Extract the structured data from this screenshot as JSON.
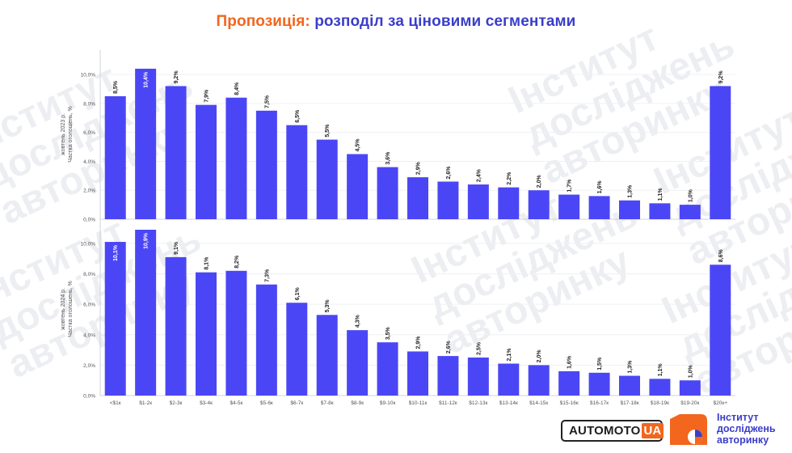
{
  "title": {
    "accent": "Пропозиція:",
    "main": "розподіл за ціновими сегментами"
  },
  "chart_data": [
    {
      "type": "bar",
      "ylabel_line1": "жовтень 2023 р.",
      "ylabel_line2": "Частка оголошень, %",
      "ylim": [
        0,
        10.9
      ],
      "yticks": [
        "0,0%",
        "2,0%",
        "4,0%",
        "6,0%",
        "8,0%",
        "10,0%"
      ],
      "values": [
        8.5,
        10.4,
        9.2,
        7.9,
        8.4,
        7.5,
        6.5,
        5.5,
        4.5,
        3.6,
        2.9,
        2.6,
        2.4,
        2.2,
        2.0,
        1.7,
        1.6,
        1.3,
        1.1,
        1.0,
        9.2
      ],
      "labels": [
        "8,5%",
        "10,4%",
        "9,2%",
        "7,9%",
        "8,4%",
        "7,5%",
        "6,5%",
        "5,5%",
        "4,5%",
        "3,6%",
        "2,9%",
        "2,6%",
        "2,4%",
        "2,2%",
        "2,0%",
        "1,7%",
        "1,6%",
        "1,3%",
        "1,1%",
        "1,0%",
        "9,2%"
      ]
    },
    {
      "type": "bar",
      "ylabel_line1": "жовтень 2024 р.",
      "ylabel_line2": "Частка оголошень, %",
      "ylim": [
        0,
        10.9
      ],
      "yticks": [
        "0,0%",
        "2,0%",
        "4,0%",
        "6,0%",
        "8,0%",
        "10,0%"
      ],
      "values": [
        10.1,
        10.9,
        9.1,
        8.1,
        8.2,
        7.3,
        6.1,
        5.3,
        4.3,
        3.5,
        2.9,
        2.6,
        2.5,
        2.1,
        2.0,
        1.6,
        1.5,
        1.3,
        1.1,
        1.0,
        8.6
      ],
      "labels": [
        "10,1%",
        "10,9%",
        "9,1%",
        "8,1%",
        "8,2%",
        "7,3%",
        "6,1%",
        "5,3%",
        "4,3%",
        "3,5%",
        "2,9%",
        "2,6%",
        "2,5%",
        "2,1%",
        "2,0%",
        "1,6%",
        "1,5%",
        "1,3%",
        "1,1%",
        "1,0%",
        "8,6%"
      ],
      "categories": [
        "<$1к",
        "$1-2к",
        "$2-3к",
        "$3-4к",
        "$4-5к",
        "$5-6к",
        "$6-7к",
        "$7-8к",
        "$8-9к",
        "$9-10к",
        "$10-11к",
        "$11-12к",
        "$12-13к",
        "$13-14к",
        "$14-15к",
        "$15-16к",
        "$16-17к",
        "$17-18к",
        "$18-19к",
        "$19-20к",
        "$20к+"
      ]
    }
  ],
  "watermark": "Інститут\nдосліджень\nавторинку",
  "logos": {
    "automoto_text": "AUTOMOTO",
    "automoto_suffix": "UA",
    "institute_line1": "Інститут",
    "institute_line2": "досліджень",
    "institute_line3": "авторинку"
  },
  "colors": {
    "bar": "#4b46f5",
    "accent": "#f2661d",
    "title_blue": "#3b3dc9"
  }
}
